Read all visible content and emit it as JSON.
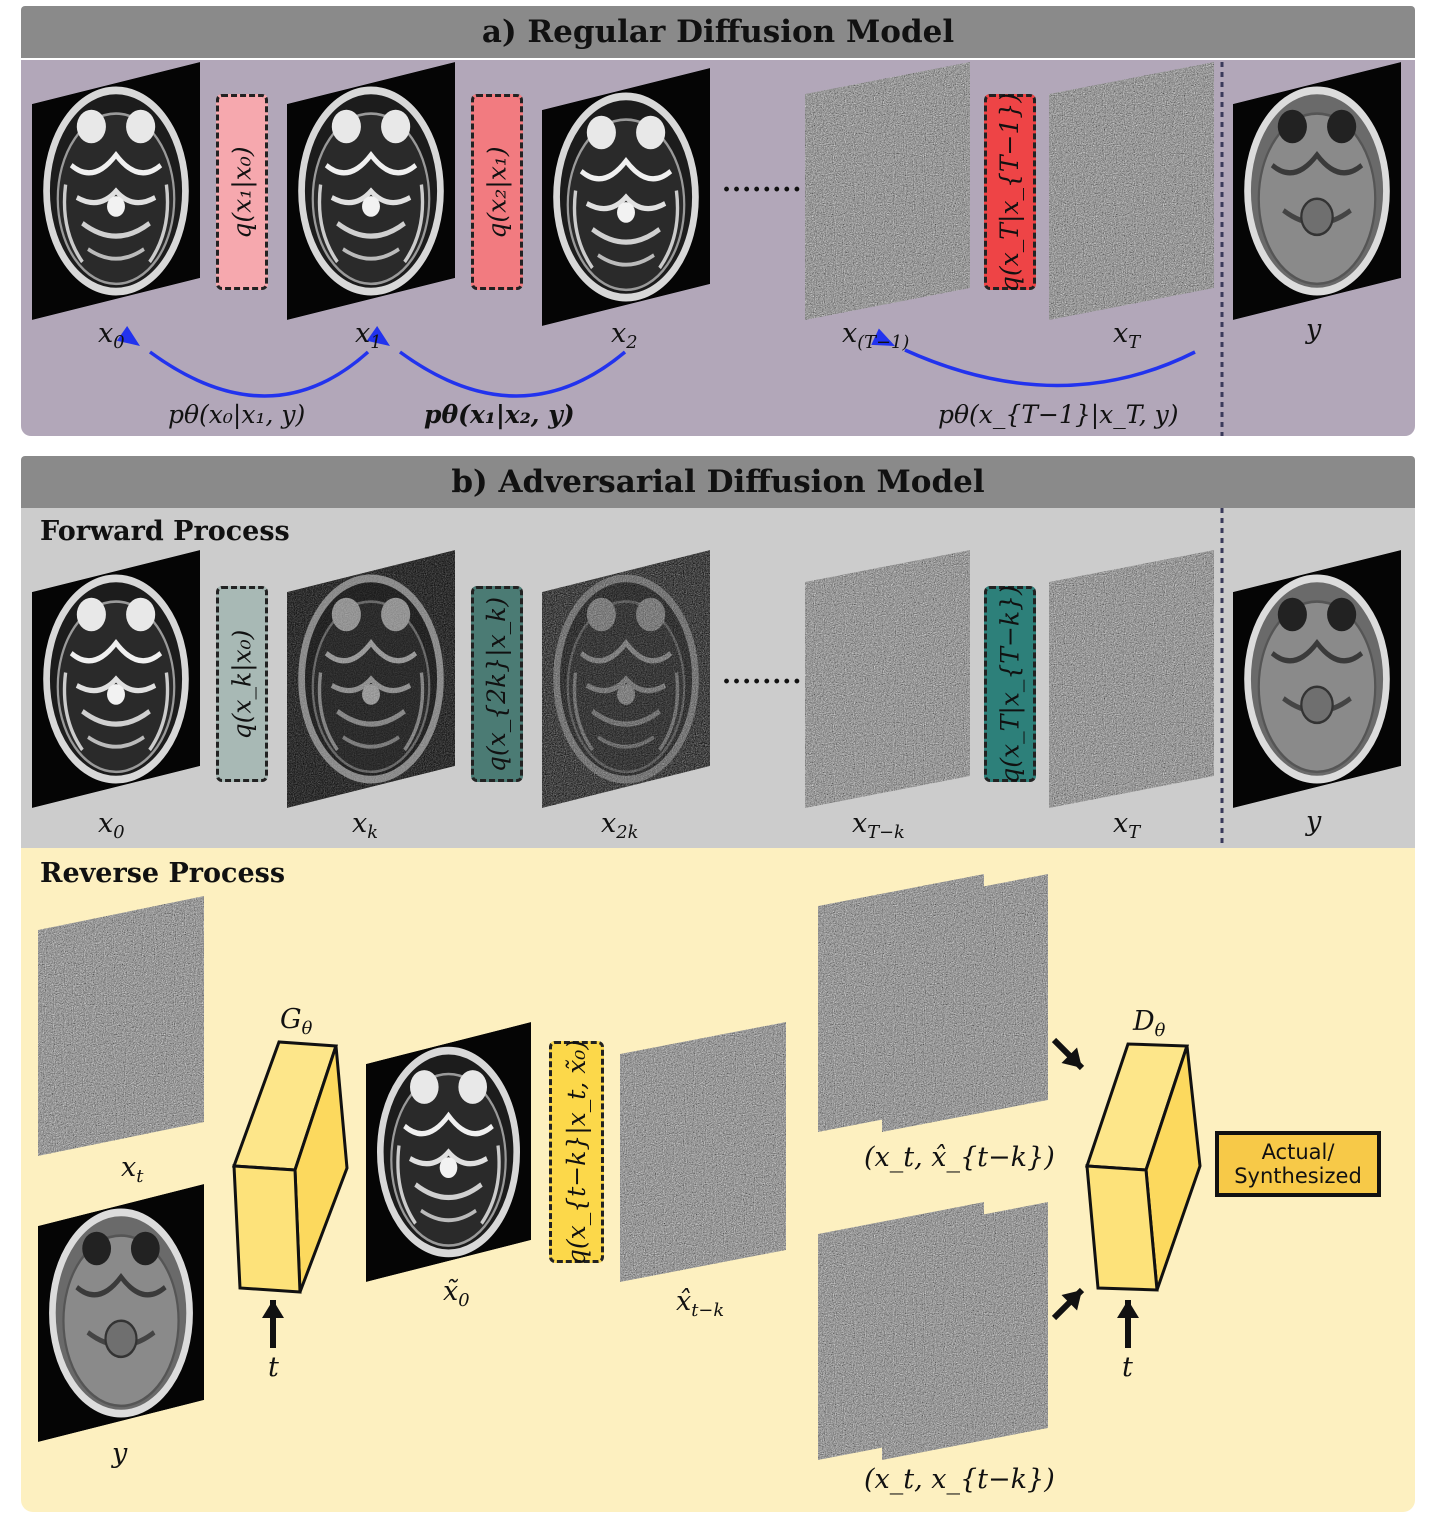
{
  "panel_a": {
    "title": "a) Regular Diffusion Model",
    "images": [
      {
        "id": "x0",
        "label": "x",
        "sub": "0"
      },
      {
        "id": "x1",
        "label": "x",
        "sub": "1"
      },
      {
        "id": "x2",
        "label": "x",
        "sub": "2"
      },
      {
        "id": "xT-1",
        "label": "x",
        "sub": "(T−1)"
      },
      {
        "id": "xT",
        "label": "x",
        "sub": "T"
      },
      {
        "id": "y",
        "label": "y"
      }
    ],
    "transitions": [
      {
        "text": "q(x₁|x₀)",
        "color": "#f6a8ae"
      },
      {
        "text": "q(x₂|x₁)",
        "color": "#f27b80"
      },
      {
        "text": "q(x_T|x_{T−1})",
        "color": "#ee4446"
      }
    ],
    "reverse_labels": [
      "pθ(x₀|x₁, y)",
      "pθ(x₁|x₂, y)",
      "pθ(x_{T−1}|x_T, y)"
    ],
    "ellipsis": "........",
    "colors": {
      "background": "#b2a7b9",
      "arrow": "#2233ee"
    }
  },
  "panel_b": {
    "title": "b) Adversarial Diffusion Model",
    "forward": {
      "heading": "Forward Process",
      "images": [
        {
          "label": "x",
          "sub": "0"
        },
        {
          "label": "x",
          "sub": "k"
        },
        {
          "label": "x",
          "sub": "2k"
        },
        {
          "label": "x",
          "sub": "T−k"
        },
        {
          "label": "x",
          "sub": "T"
        },
        {
          "label": "y"
        }
      ],
      "transitions": [
        {
          "text": "q(x_k|x₀)",
          "color": "#a8b9b5"
        },
        {
          "text": "q(x_{2k}|x_k)",
          "color": "#4b7b74"
        },
        {
          "text": "q(x_T|x_{T−k})",
          "color": "#2d807a"
        }
      ],
      "ellipsis": "........",
      "colors": {
        "background": "#cccccc"
      }
    },
    "reverse": {
      "heading": "Reverse Process",
      "generator": "G",
      "generator_sub": "θ",
      "discriminator": "D",
      "discriminator_sub": "θ",
      "time_label": "t",
      "images": {
        "xt": {
          "label": "x",
          "sub": "t"
        },
        "y": {
          "label": "y"
        },
        "x0_tilde": {
          "label": "x̃",
          "sub": "0"
        },
        "xhat": {
          "label": "x̂",
          "sub": "t−k"
        }
      },
      "posterior": "q(x_{t−k}|x_t, x̃₀)",
      "pairs": [
        "(x_t, x̂_{t−k})",
        "(x_t, x_{t−k})"
      ],
      "output_line1": "Actual/",
      "output_line2": "Synthesized",
      "colors": {
        "background": "#fdf0c0",
        "block": "#fde27a",
        "output": "#f7c948",
        "posterior_box": "#fcd84a"
      }
    }
  }
}
